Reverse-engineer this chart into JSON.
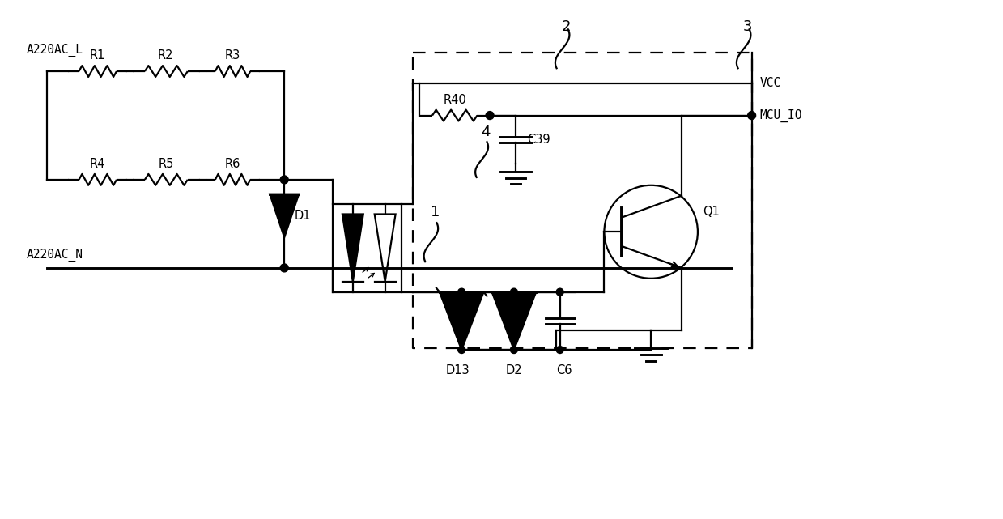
{
  "bg": "#ffffff",
  "lc": "#000000",
  "lw": 1.6,
  "fw": 12.39,
  "fh": 6.41,
  "dpi": 100,
  "xlim": [
    0,
    12.39
  ],
  "ylim": [
    0,
    6.41
  ]
}
